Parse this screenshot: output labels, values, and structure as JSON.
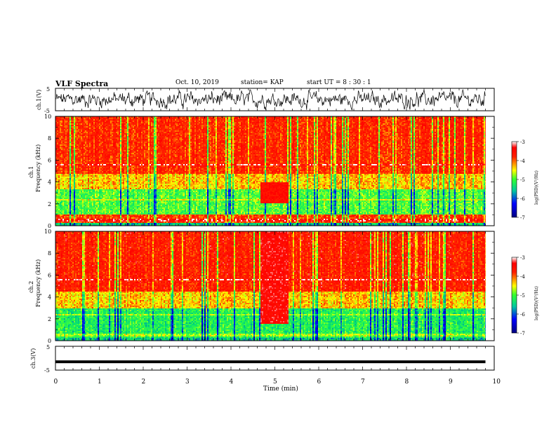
{
  "header": {
    "title": "VLF Spectra",
    "date": "Oct. 10, 2019",
    "station": "station= KAP",
    "start_time": "start  UT =   8 : 30 : 1"
  },
  "colors": {
    "waveform": "#000000",
    "colormap": [
      "#000080",
      "#0000ff",
      "#00ff40",
      "#ffff00",
      "#ff0000",
      "#ffffff"
    ]
  },
  "chart_data": [
    {
      "type": "line",
      "panel": "ch1-waveform",
      "ylabel": "ch.1(V)",
      "ylim": [
        -5,
        5
      ],
      "yticks": [
        "5",
        "-5"
      ],
      "xlim": [
        0,
        10
      ],
      "description_values": "noisy signal oscillating roughly between -3 and 3 V"
    },
    {
      "type": "heatmap",
      "panel": "ch1-spectrogram",
      "ylabel": "ch.1\nFrequency (kHz)",
      "ylim": [
        0,
        10
      ],
      "yticks": [
        "0",
        "2",
        "4",
        "6",
        "8",
        "10"
      ],
      "xlim": [
        0,
        9.8
      ],
      "colorbar": {
        "label": "log(PSD)(V²/Hz)",
        "min": -7,
        "max": -3,
        "ticks": [
          "-3",
          "-4",
          "-5",
          "-6",
          "-7"
        ]
      },
      "bands": [
        {
          "f_range": [
            0,
            0.3
          ],
          "level": -5.5
        },
        {
          "f_range": [
            0.3,
            1.0
          ],
          "level": -3.8
        },
        {
          "f_range": [
            1.0,
            3.3
          ],
          "level": -5.0
        },
        {
          "f_range": [
            3.3,
            4.8
          ],
          "level": -4.3
        },
        {
          "f_range": [
            4.8,
            10
          ],
          "level": -3.7
        }
      ],
      "event": {
        "t_range": [
          4.65,
          5.3
        ],
        "f_range": [
          2.0,
          4.0
        ],
        "level": -3.4
      }
    },
    {
      "type": "heatmap",
      "panel": "ch2-spectrogram",
      "ylabel": "ch.2\nFrequency (kHz)",
      "ylim": [
        0,
        10
      ],
      "yticks": [
        "0",
        "2",
        "4",
        "6",
        "8",
        "10"
      ],
      "xlim": [
        0,
        9.8
      ],
      "colorbar": {
        "label": "log(PSD)(V²/Hz)",
        "min": -7,
        "max": -3,
        "ticks": [
          "-3",
          "-4",
          "-5",
          "-6",
          "-7"
        ]
      },
      "bands": [
        {
          "f_range": [
            0,
            0.3
          ],
          "level": -5.5
        },
        {
          "f_range": [
            0.3,
            3.0
          ],
          "level": -5.2
        },
        {
          "f_range": [
            3.0,
            4.5
          ],
          "level": -4.3
        },
        {
          "f_range": [
            4.5,
            10
          ],
          "level": -3.6
        }
      ],
      "event": {
        "t_range": [
          4.65,
          5.3
        ],
        "f_range": [
          1.5,
          10
        ],
        "level": -3.3
      }
    },
    {
      "type": "line",
      "panel": "ch3-waveform",
      "ylabel": "ch.3(V)",
      "ylim": [
        -5,
        5
      ],
      "yticks": [
        "5",
        "-5"
      ],
      "xlim": [
        0,
        9.8
      ],
      "level": -1.5
    }
  ],
  "xaxis": {
    "label": "Time (min)",
    "ticks": [
      "0",
      "1",
      "2",
      "3",
      "4",
      "5",
      "6",
      "7",
      "8",
      "9",
      "10"
    ],
    "range": [
      0,
      10
    ]
  }
}
